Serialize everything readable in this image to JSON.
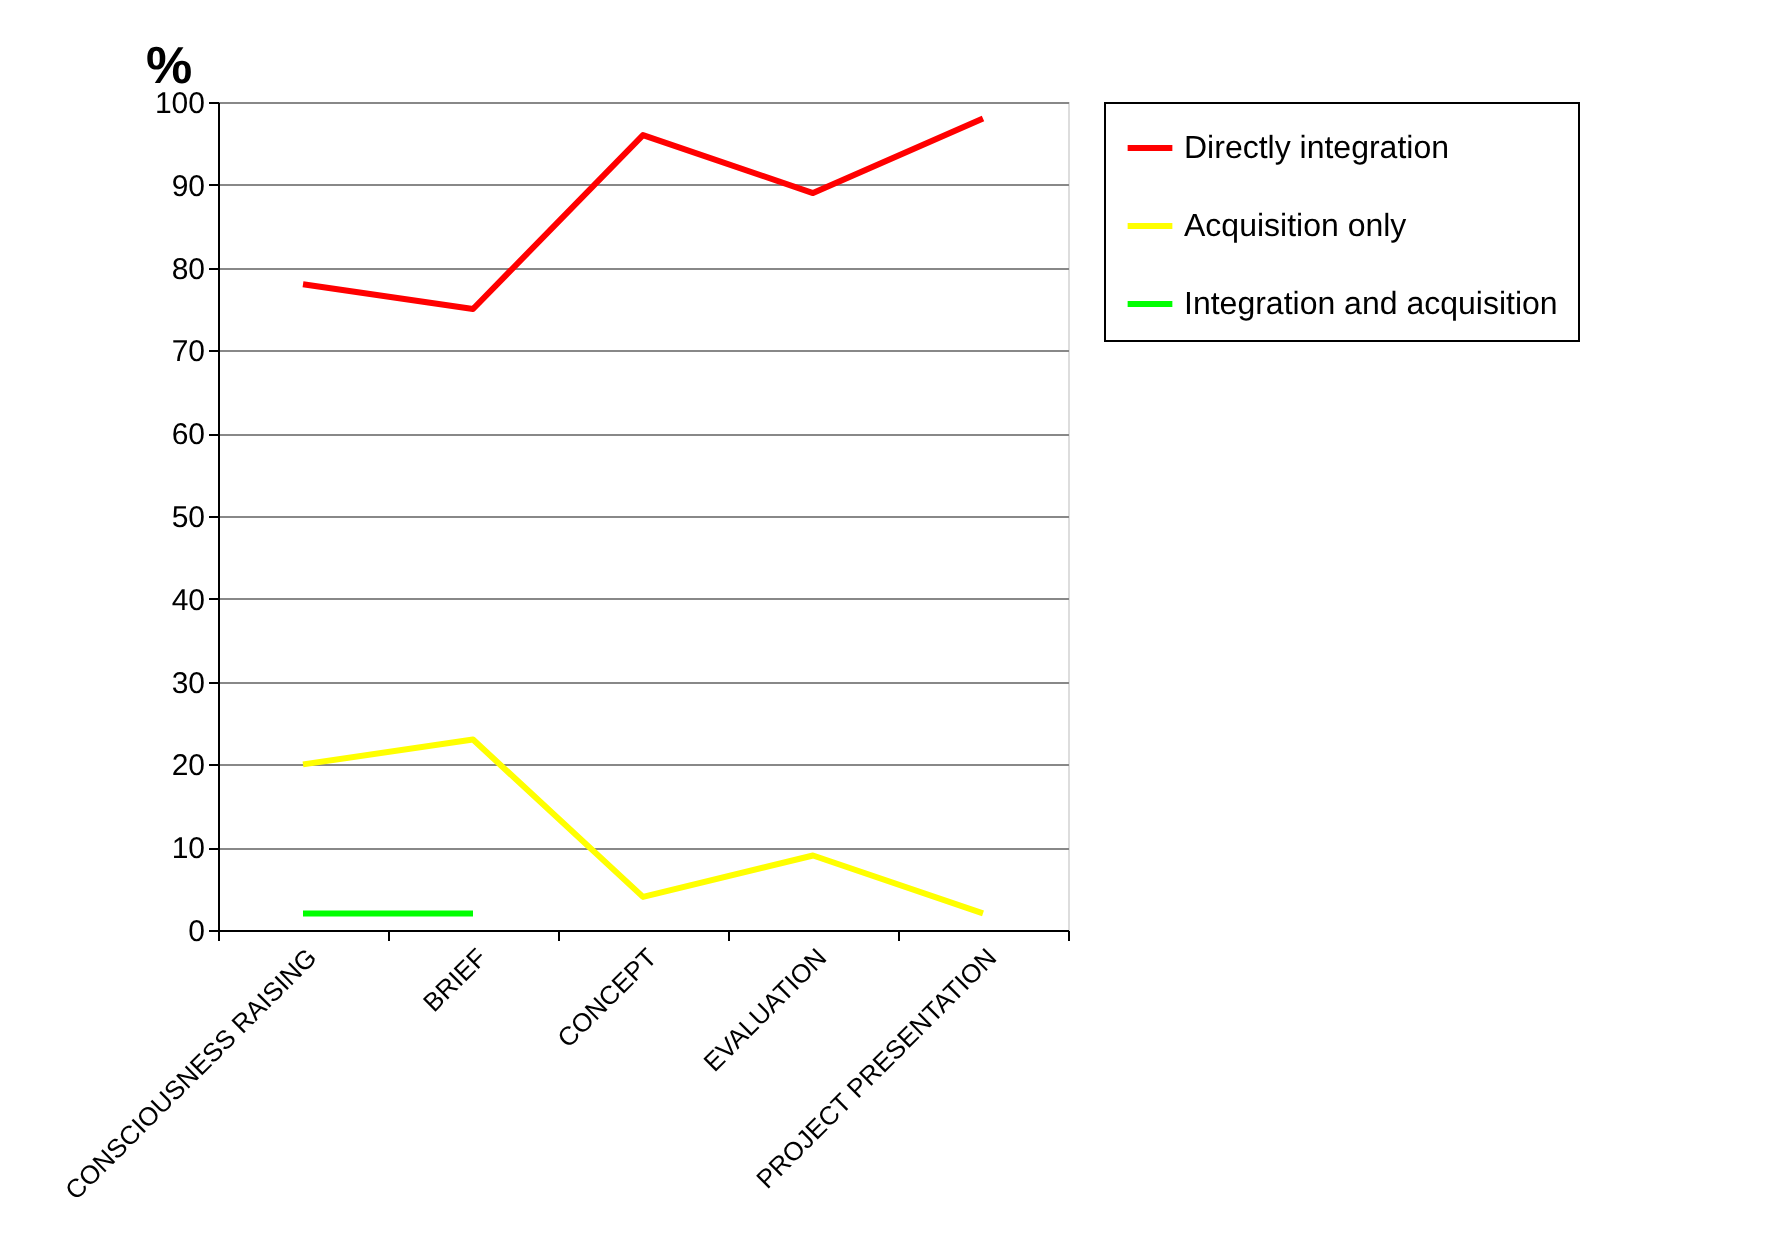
{
  "chart_data": {
    "type": "line",
    "ylabel": "%",
    "categories": [
      "CONSCIOUSNESS RAISING",
      "BRIEF",
      "CONCEPT",
      "EVALUATION",
      "PROJECT PRESENTATION"
    ],
    "series": [
      {
        "name": "Directly integration",
        "color": "#ff0000",
        "values": [
          78,
          75,
          96,
          89,
          98
        ]
      },
      {
        "name": "Acquisition only",
        "color": "#ffff00",
        "values": [
          20,
          23,
          4,
          9,
          2
        ]
      },
      {
        "name": "Integration and acquisition",
        "color": "#00ff00",
        "values": [
          2,
          2,
          null,
          null,
          null
        ]
      }
    ],
    "ylim": [
      0,
      100
    ],
    "yticks": [
      0,
      10,
      20,
      30,
      40,
      50,
      60,
      70,
      80,
      90,
      100
    ],
    "grid": "y",
    "legend": "right",
    "marker": "none",
    "line_style": "solid"
  }
}
